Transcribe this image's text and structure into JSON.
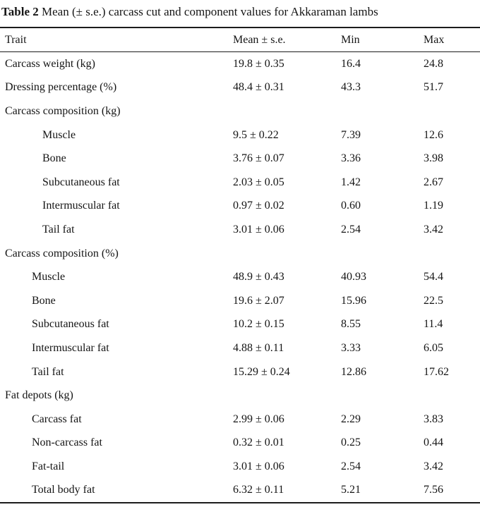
{
  "title": {
    "bold": "Table 2",
    "rest": " Mean (± s.e.) carcass cut and component values for Akkaraman lambs"
  },
  "table": {
    "columns": [
      "Trait",
      "Mean ± s.e.",
      "Min",
      "Max"
    ],
    "rows": [
      {
        "trait": "Carcass weight (kg)",
        "indent": 0,
        "mean": "19.8 ± 0.35",
        "min": "16.4",
        "max": "24.8"
      },
      {
        "trait": "Dressing percentage (%)",
        "indent": 0,
        "mean": "48.4 ± 0.31",
        "min": "43.3",
        "max": "51.7"
      },
      {
        "trait": "Carcass composition (kg)",
        "indent": 0,
        "mean": "",
        "min": "",
        "max": ""
      },
      {
        "trait": "Muscle",
        "indent": 2,
        "mean": "9.5 ± 0.22",
        "min": "7.39",
        "max": "12.6"
      },
      {
        "trait": "Bone",
        "indent": 2,
        "mean": "3.76 ± 0.07",
        "min": "3.36",
        "max": "3.98"
      },
      {
        "trait": "Subcutaneous fat",
        "indent": 2,
        "mean": "2.03 ± 0.05",
        "min": "1.42",
        "max": "2.67"
      },
      {
        "trait": "Intermuscular fat",
        "indent": 2,
        "mean": "0.97 ± 0.02",
        "min": "0.60",
        "max": "1.19"
      },
      {
        "trait": "Tail fat",
        "indent": 2,
        "mean": "3.01 ± 0.06",
        "min": "2.54",
        "max": "3.42"
      },
      {
        "trait": "Carcass composition (%)",
        "indent": 0,
        "mean": "",
        "min": "",
        "max": ""
      },
      {
        "trait": "Muscle",
        "indent": 1,
        "mean": "48.9 ± 0.43",
        "min": "40.93",
        "max": "54.4"
      },
      {
        "trait": "Bone",
        "indent": 1,
        "mean": "19.6 ± 2.07",
        "min": "15.96",
        "max": "22.5"
      },
      {
        "trait": "Subcutaneous fat",
        "indent": 1,
        "mean": "10.2 ± 0.15",
        "min": "8.55",
        "max": "11.4"
      },
      {
        "trait": "Intermuscular fat",
        "indent": 1,
        "mean": "4.88 ± 0.11",
        "min": "3.33",
        "max": "6.05"
      },
      {
        "trait": "Tail fat",
        "indent": 1,
        "mean": "15.29 ± 0.24",
        "min": "12.86",
        "max": "17.62"
      },
      {
        "trait": "Fat depots (kg)",
        "indent": 0,
        "mean": "",
        "min": "",
        "max": ""
      },
      {
        "trait": "Carcass fat",
        "indent": 1,
        "mean": "2.99 ± 0.06",
        "min": "2.29",
        "max": "3.83"
      },
      {
        "trait": "Non-carcass fat",
        "indent": 1,
        "mean": "0.32 ± 0.01",
        "min": "0.25",
        "max": "0.44"
      },
      {
        "trait": "Fat-tail",
        "indent": 1,
        "mean": "3.01 ± 0.06",
        "min": "2.54",
        "max": "3.42"
      },
      {
        "trait": "Total body fat",
        "indent": 1,
        "mean": "6.32 ± 0.11",
        "min": "5.21",
        "max": "7.56"
      }
    ]
  }
}
